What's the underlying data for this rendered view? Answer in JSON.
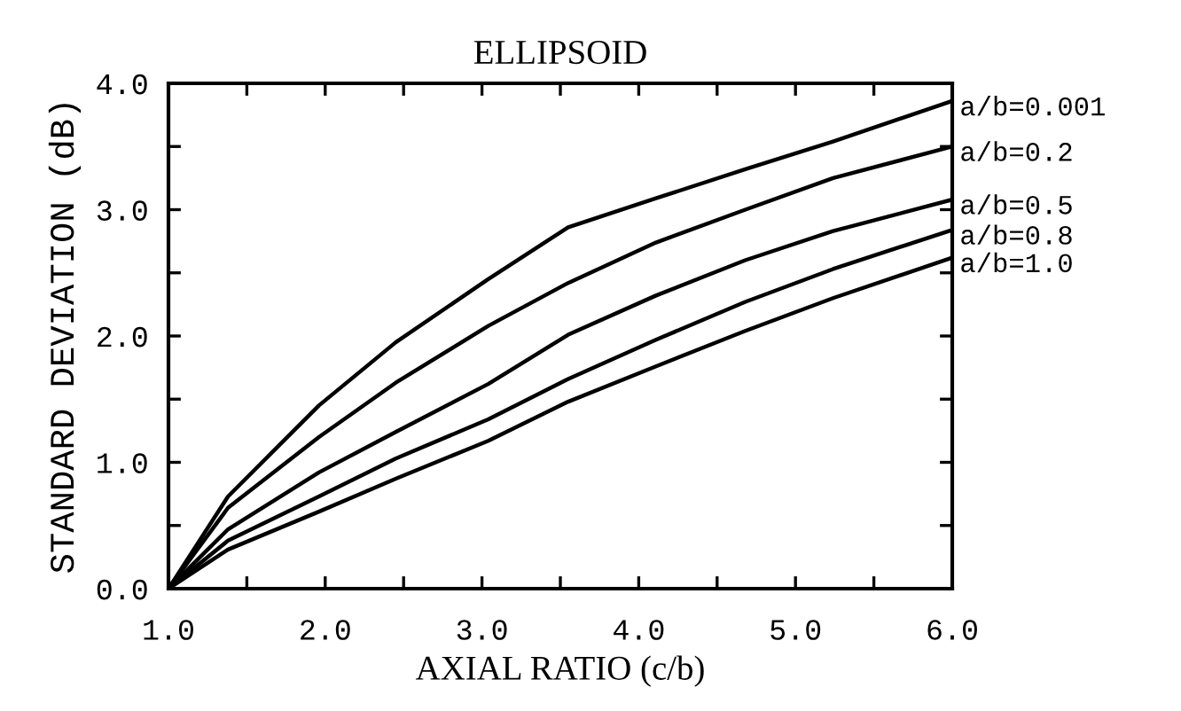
{
  "chart_data": {
    "type": "line",
    "title": "ELLIPSOID",
    "xlabel": "AXIAL RATIO (c/b)",
    "ylabel": "STANDARD DEVIATION (dB)",
    "x": [
      1.0,
      1.38,
      1.96,
      2.45,
      3.04,
      3.55,
      4.11,
      4.68,
      5.24,
      6.0
    ],
    "series": [
      {
        "name": "a/b=0.001",
        "color": "#000000",
        "values": [
          0.0,
          0.73,
          1.45,
          1.95,
          2.45,
          2.86,
          3.09,
          3.32,
          3.54,
          3.86
        ]
      },
      {
        "name": "a/b=0.2",
        "color": "#000000",
        "values": [
          0.0,
          0.64,
          1.2,
          1.63,
          2.08,
          2.42,
          2.74,
          3.0,
          3.25,
          3.5
        ]
      },
      {
        "name": "a/b=0.5",
        "color": "#000000",
        "values": [
          0.0,
          0.47,
          0.92,
          1.24,
          1.62,
          2.01,
          2.32,
          2.6,
          2.83,
          3.08
        ]
      },
      {
        "name": "a/b=0.8",
        "color": "#000000",
        "values": [
          0.0,
          0.38,
          0.73,
          1.03,
          1.34,
          1.66,
          1.97,
          2.27,
          2.53,
          2.84
        ]
      },
      {
        "name": "a/b=1.0",
        "color": "#000000",
        "values": [
          0.0,
          0.31,
          0.61,
          0.87,
          1.17,
          1.48,
          1.76,
          2.04,
          2.3,
          2.62
        ]
      }
    ],
    "xlim": [
      1.0,
      6.0
    ],
    "xticks": [
      {
        "value": 1.0,
        "label": "1.0"
      },
      {
        "value": 1.5,
        "label": null
      },
      {
        "value": 2.0,
        "label": "2.0"
      },
      {
        "value": 2.5,
        "label": null
      },
      {
        "value": 3.0,
        "label": "3.0"
      },
      {
        "value": 3.5,
        "label": null
      },
      {
        "value": 4.0,
        "label": "4.0"
      },
      {
        "value": 4.5,
        "label": null
      },
      {
        "value": 5.0,
        "label": "5.0"
      },
      {
        "value": 5.5,
        "label": null
      },
      {
        "value": 6.0,
        "label": "6.0"
      }
    ],
    "ylim": [
      0.0,
      4.0
    ],
    "yticks": [
      {
        "value": 0.0,
        "label": "0.0"
      },
      {
        "value": 0.5,
        "label": null
      },
      {
        "value": 1.0,
        "label": "1.0"
      },
      {
        "value": 1.5,
        "label": null
      },
      {
        "value": 2.0,
        "label": "2.0"
      },
      {
        "value": 2.5,
        "label": null
      },
      {
        "value": 3.0,
        "label": "3.0"
      },
      {
        "value": 3.5,
        "label": null
      },
      {
        "value": 4.0,
        "label": "4.0"
      }
    ],
    "grid": false,
    "legend": "right",
    "marker": "none",
    "line_style": "solid"
  }
}
